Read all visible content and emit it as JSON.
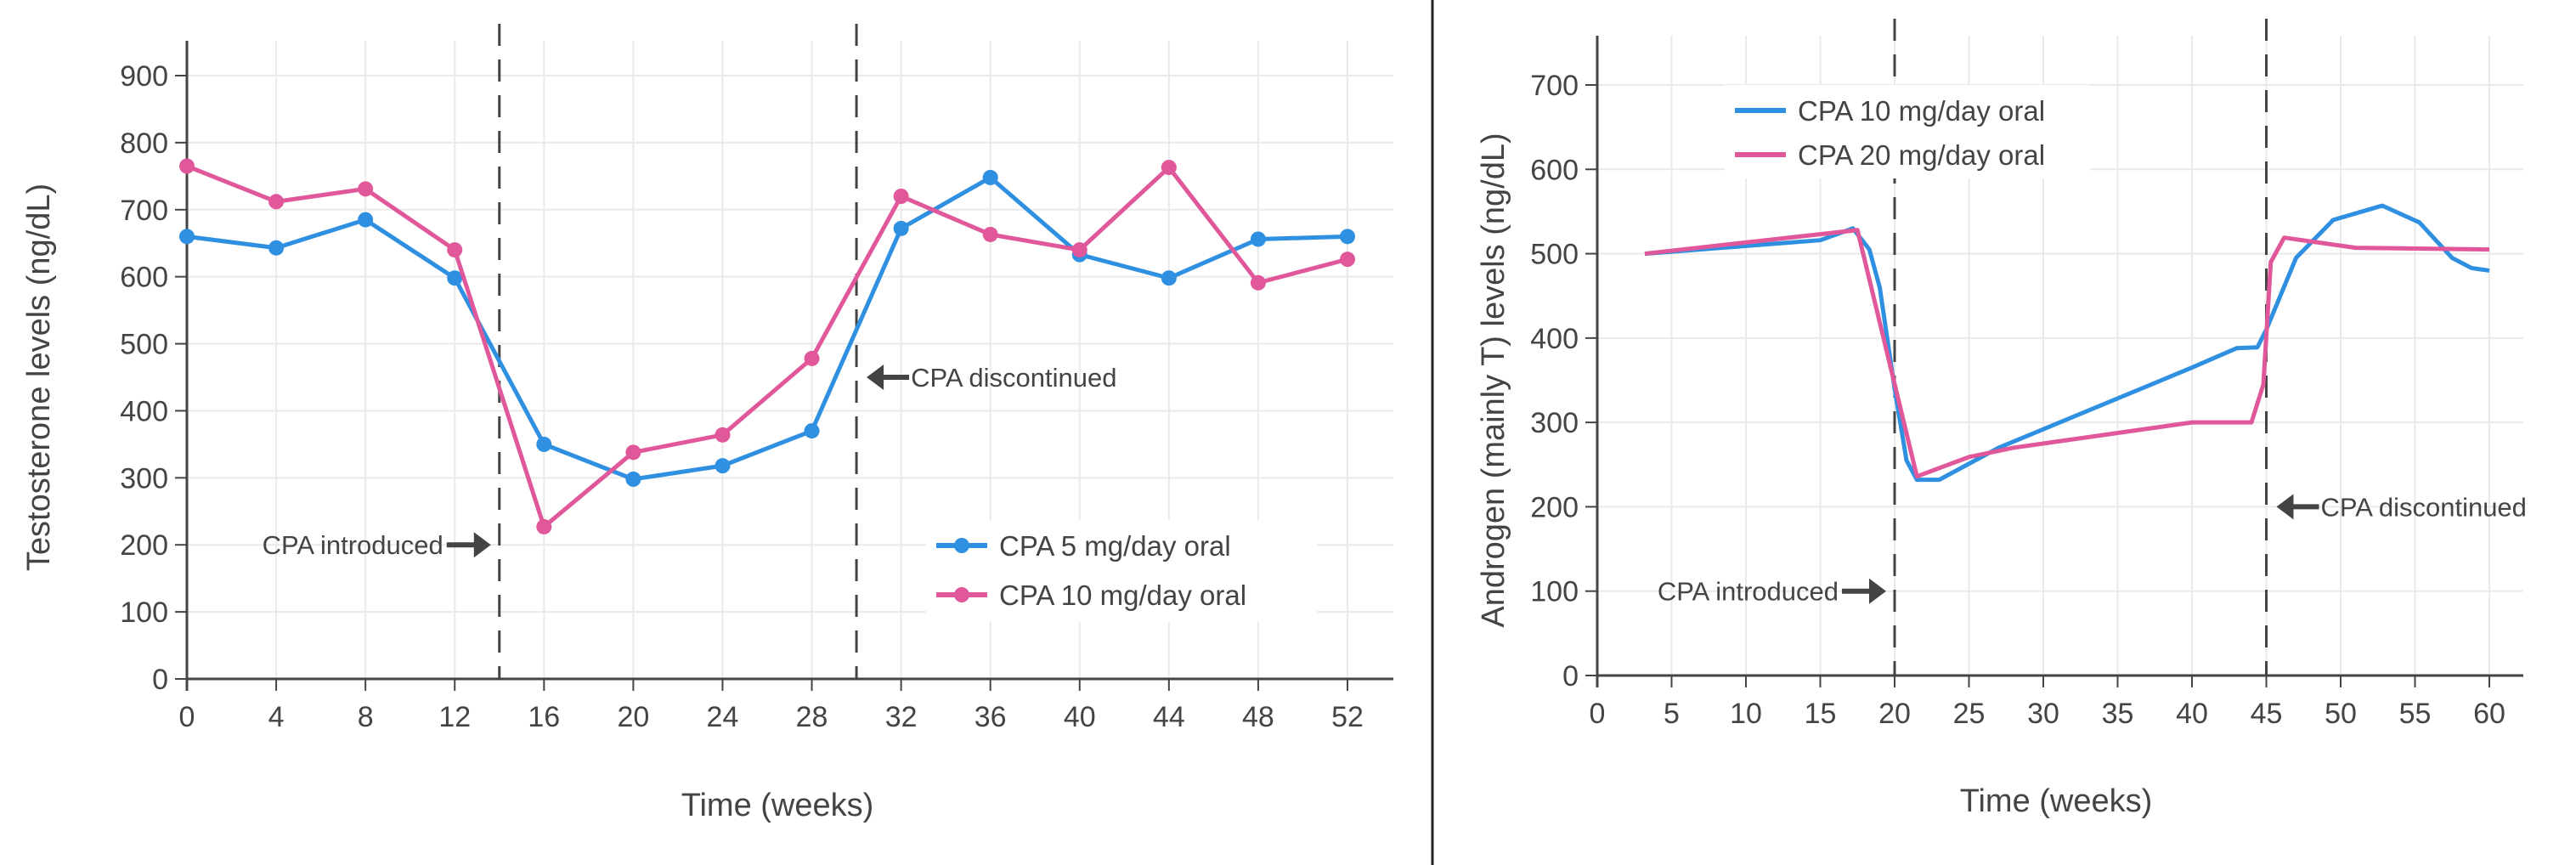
{
  "chart_data": [
    {
      "type": "line",
      "xlabel": "Time (weeks)",
      "ylabel": "Testosterone levels (ng/dL)",
      "xlim": [
        0,
        52
      ],
      "ylim": [
        0,
        900
      ],
      "xticks": [
        0,
        4,
        8,
        12,
        16,
        20,
        24,
        28,
        32,
        36,
        40,
        44,
        48,
        52
      ],
      "yticks": [
        0,
        100,
        200,
        300,
        400,
        500,
        600,
        700,
        800,
        900
      ],
      "grid": true,
      "markers": true,
      "legend_placement": "bottom-right",
      "series": [
        {
          "name": "CPA 5 mg/day oral",
          "color": "#2f8fe0",
          "x": [
            0,
            4,
            8,
            12,
            16,
            20,
            24,
            28,
            32,
            36,
            40,
            44,
            48,
            52
          ],
          "y": [
            660,
            643,
            685,
            598,
            350,
            298,
            318,
            370,
            672,
            748,
            633,
            598,
            656,
            660
          ]
        },
        {
          "name": "CPA 10 mg/day oral",
          "color": "#e0589a",
          "x": [
            0,
            4,
            8,
            12,
            16,
            20,
            24,
            28,
            32,
            36,
            40,
            44,
            48,
            52
          ],
          "y": [
            765,
            712,
            731,
            640,
            227,
            338,
            364,
            478,
            720,
            663,
            640,
            763,
            591,
            626
          ]
        }
      ],
      "vlines": [
        14,
        30
      ],
      "annotations": [
        {
          "text": "CPA introduced",
          "x": 14,
          "y": 200,
          "arrow": "right"
        },
        {
          "text": "CPA discontinued",
          "x": 30,
          "y": 450,
          "arrow": "left"
        }
      ]
    },
    {
      "type": "line",
      "xlabel": "Time (weeks)",
      "ylabel": "Androgen (mainly T) levels (ng/dL)",
      "xlim": [
        0,
        62
      ],
      "ylim": [
        0,
        700
      ],
      "xticks": [
        0,
        5,
        10,
        15,
        20,
        25,
        30,
        35,
        40,
        45,
        50,
        55,
        60
      ],
      "yticks": [
        0,
        100,
        200,
        300,
        400,
        500,
        600,
        700
      ],
      "grid": true,
      "markers": false,
      "legend_placement": "top-left",
      "series": [
        {
          "name": "CPA 10 mg/day oral",
          "color": "#2f8fe0",
          "x": [
            3.2,
            15,
            17.2,
            18.3,
            19,
            20,
            20.8,
            21.5,
            23,
            27,
            40,
            43,
            44.4,
            45,
            47,
            49.5,
            52.8,
            55.3,
            57.5,
            58.8,
            60
          ],
          "y": [
            500,
            516,
            530,
            505,
            460,
            340,
            255,
            232,
            232,
            270,
            365,
            388,
            389,
            410,
            495,
            540,
            557,
            537,
            495,
            483,
            480
          ]
        },
        {
          "name": "CPA 20 mg/day oral",
          "color": "#e0589a",
          "x": [
            3.2,
            17.5,
            21.5,
            25,
            28,
            40,
            44,
            44.8,
            45.3,
            46.2,
            51,
            60
          ],
          "y": [
            500,
            528,
            236,
            259,
            270,
            300,
            300,
            345,
            490,
            519,
            507,
            505
          ]
        }
      ],
      "vlines": [
        20,
        45
      ],
      "annotations": [
        {
          "text": "CPA introduced",
          "x": 20,
          "y": 100,
          "arrow": "right"
        },
        {
          "text": "CPA discontinued",
          "x": 45,
          "y": 200,
          "arrow": "left"
        }
      ]
    }
  ]
}
